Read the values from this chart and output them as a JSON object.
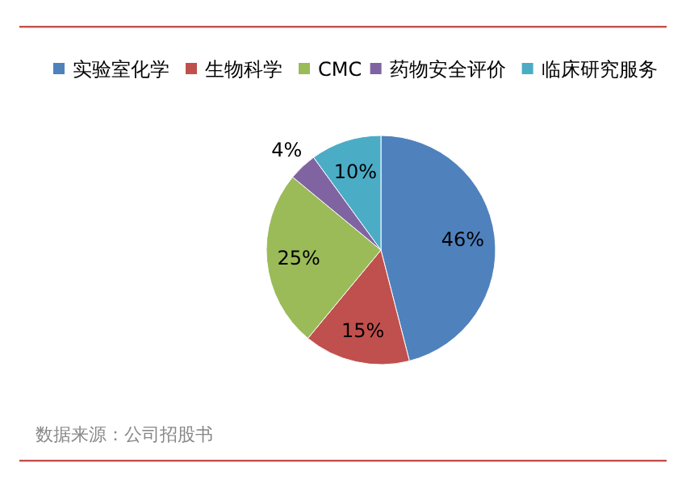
{
  "chart_data": {
    "type": "pie",
    "categories": [
      "实验室化学",
      "生物科学",
      "CMC",
      "药物安全评价",
      "临床研究服务"
    ],
    "values": [
      46,
      15,
      25,
      4,
      10
    ],
    "colors": [
      "#4f81bd",
      "#c0504d",
      "#9bbb59",
      "#8064a2",
      "#4bacc6"
    ],
    "value_labels": [
      "46%",
      "15%",
      "25%",
      "4%",
      "10%"
    ],
    "legend": "top",
    "annotations": [
      "数据来源：公司招股书"
    ]
  }
}
